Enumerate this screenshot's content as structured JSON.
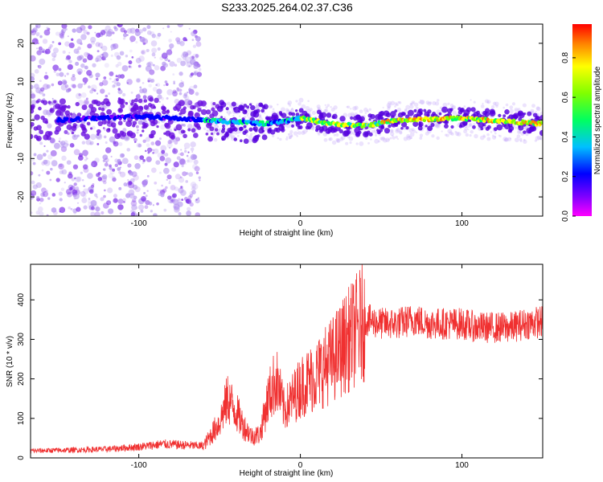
{
  "title": "S233.2025.264.02.37.C36",
  "chart_data": [
    {
      "type": "heatmap",
      "xlabel": "Height of straight line (km)",
      "ylabel": "Frequency (Hz)",
      "xlim": [
        -167,
        150
      ],
      "ylim": [
        -25,
        25
      ],
      "xticks": [
        -100,
        0,
        100
      ],
      "yticks": [
        -20,
        -10,
        0,
        10,
        20
      ],
      "colorbar": {
        "label": "Normalized spectral amplitude",
        "range": [
          0,
          0.97
        ],
        "ticks": [
          "0.0",
          "0.2",
          "0.4",
          "0.6",
          "0.8"
        ],
        "tick_values": [
          0.0,
          0.2,
          0.4,
          0.6,
          0.8
        ]
      },
      "ridge_frequency_hz": [
        {
          "x": -150,
          "f": 0
        },
        {
          "x": -100,
          "f": 1
        },
        {
          "x": -60,
          "f": 0
        },
        {
          "x": -20,
          "f": -1
        },
        {
          "x": 0,
          "f": 0.5
        },
        {
          "x": 20,
          "f": -1
        },
        {
          "x": 40,
          "f": -1.5
        },
        {
          "x": 60,
          "f": 0
        },
        {
          "x": 100,
          "f": 0.5
        },
        {
          "x": 150,
          "f": -1
        }
      ]
    },
    {
      "type": "line",
      "xlabel": "Height of straight line (km)",
      "ylabel": "SNR (10 * v/v)",
      "xlim": [
        -167,
        150
      ],
      "ylim": [
        0,
        490
      ],
      "xticks": [
        -100,
        0,
        100
      ],
      "yticks": [
        0,
        100,
        200,
        300,
        400
      ],
      "color": "#f03030",
      "series": [
        {
          "name": "SNR",
          "x": [
            -167,
            -140,
            -120,
            -100,
            -85,
            -70,
            -60,
            -50,
            -45,
            -40,
            -35,
            -30,
            -25,
            -20,
            -15,
            -10,
            -5,
            0,
            10,
            20,
            30,
            40,
            50,
            60,
            70,
            80,
            90,
            100,
            110,
            120,
            130,
            140,
            150
          ],
          "y": [
            18,
            20,
            22,
            28,
            35,
            32,
            30,
            90,
            150,
            120,
            80,
            55,
            60,
            150,
            200,
            120,
            150,
            180,
            210,
            250,
            300,
            350,
            340,
            340,
            350,
            340,
            340,
            340,
            330,
            330,
            330,
            340,
            345
          ]
        }
      ]
    }
  ]
}
